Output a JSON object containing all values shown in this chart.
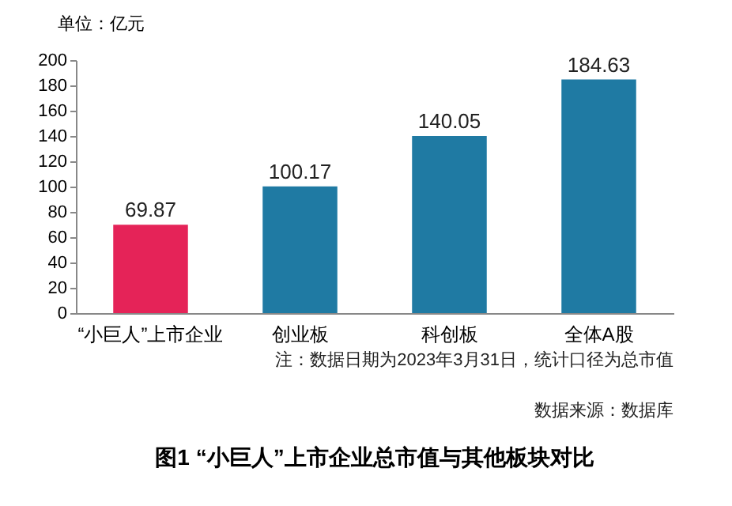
{
  "chart_data": {
    "type": "bar",
    "title": "图1 “小巨人”上市企业总市值与其他板块对比",
    "ylabel": "单位：亿元",
    "categories": [
      "“小巨人”上市企业",
      "创业板",
      "科创板",
      "全体A股"
    ],
    "values": [
      69.87,
      100.17,
      140.05,
      184.63
    ],
    "colors": [
      "#e52358",
      "#1f7aa3",
      "#1f7aa3",
      "#1f7aa3"
    ],
    "ylim": [
      0,
      200
    ],
    "yticks": [
      0,
      20,
      40,
      60,
      80,
      100,
      120,
      140,
      160,
      180,
      200
    ],
    "grid": false,
    "data_labels": true,
    "annotations": [
      "注：数据日期为2023年3月31日，统计口径为总市值",
      "数据来源：数据库"
    ]
  }
}
